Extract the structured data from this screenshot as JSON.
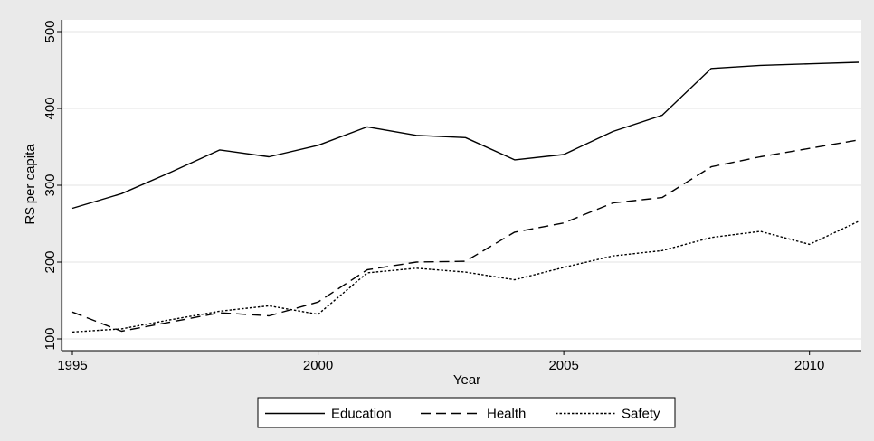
{
  "chart_data": {
    "type": "line",
    "title": "",
    "xlabel": "Year",
    "ylabel": "R$ per capita",
    "xlim": [
      1995,
      2011
    ],
    "ylim": [
      100,
      500
    ],
    "xticks": [
      1995,
      2000,
      2005,
      2010
    ],
    "yticks": [
      100,
      200,
      300,
      400,
      500
    ],
    "grid": true,
    "legend_position": "bottom",
    "x": [
      1995,
      1996,
      1997,
      1998,
      1999,
      2000,
      2001,
      2002,
      2003,
      2004,
      2005,
      2006,
      2007,
      2008,
      2009,
      2010,
      2011
    ],
    "series": [
      {
        "name": "Education",
        "style": "solid",
        "color": "#000000",
        "values": [
          270,
          289,
          317,
          346,
          337,
          352,
          376,
          365,
          362,
          333,
          340,
          370,
          391,
          452,
          456,
          458,
          460
        ]
      },
      {
        "name": "Health",
        "style": "dashed",
        "color": "#000000",
        "values": [
          135,
          110,
          122,
          134,
          130,
          148,
          190,
          200,
          201,
          239,
          251,
          277,
          284,
          324,
          337,
          348,
          359
        ]
      },
      {
        "name": "Safety",
        "style": "dotted",
        "color": "#000000",
        "values": [
          109,
          113,
          125,
          136,
          143,
          132,
          186,
          192,
          187,
          177,
          193,
          208,
          215,
          232,
          240,
          223,
          253
        ]
      }
    ]
  }
}
